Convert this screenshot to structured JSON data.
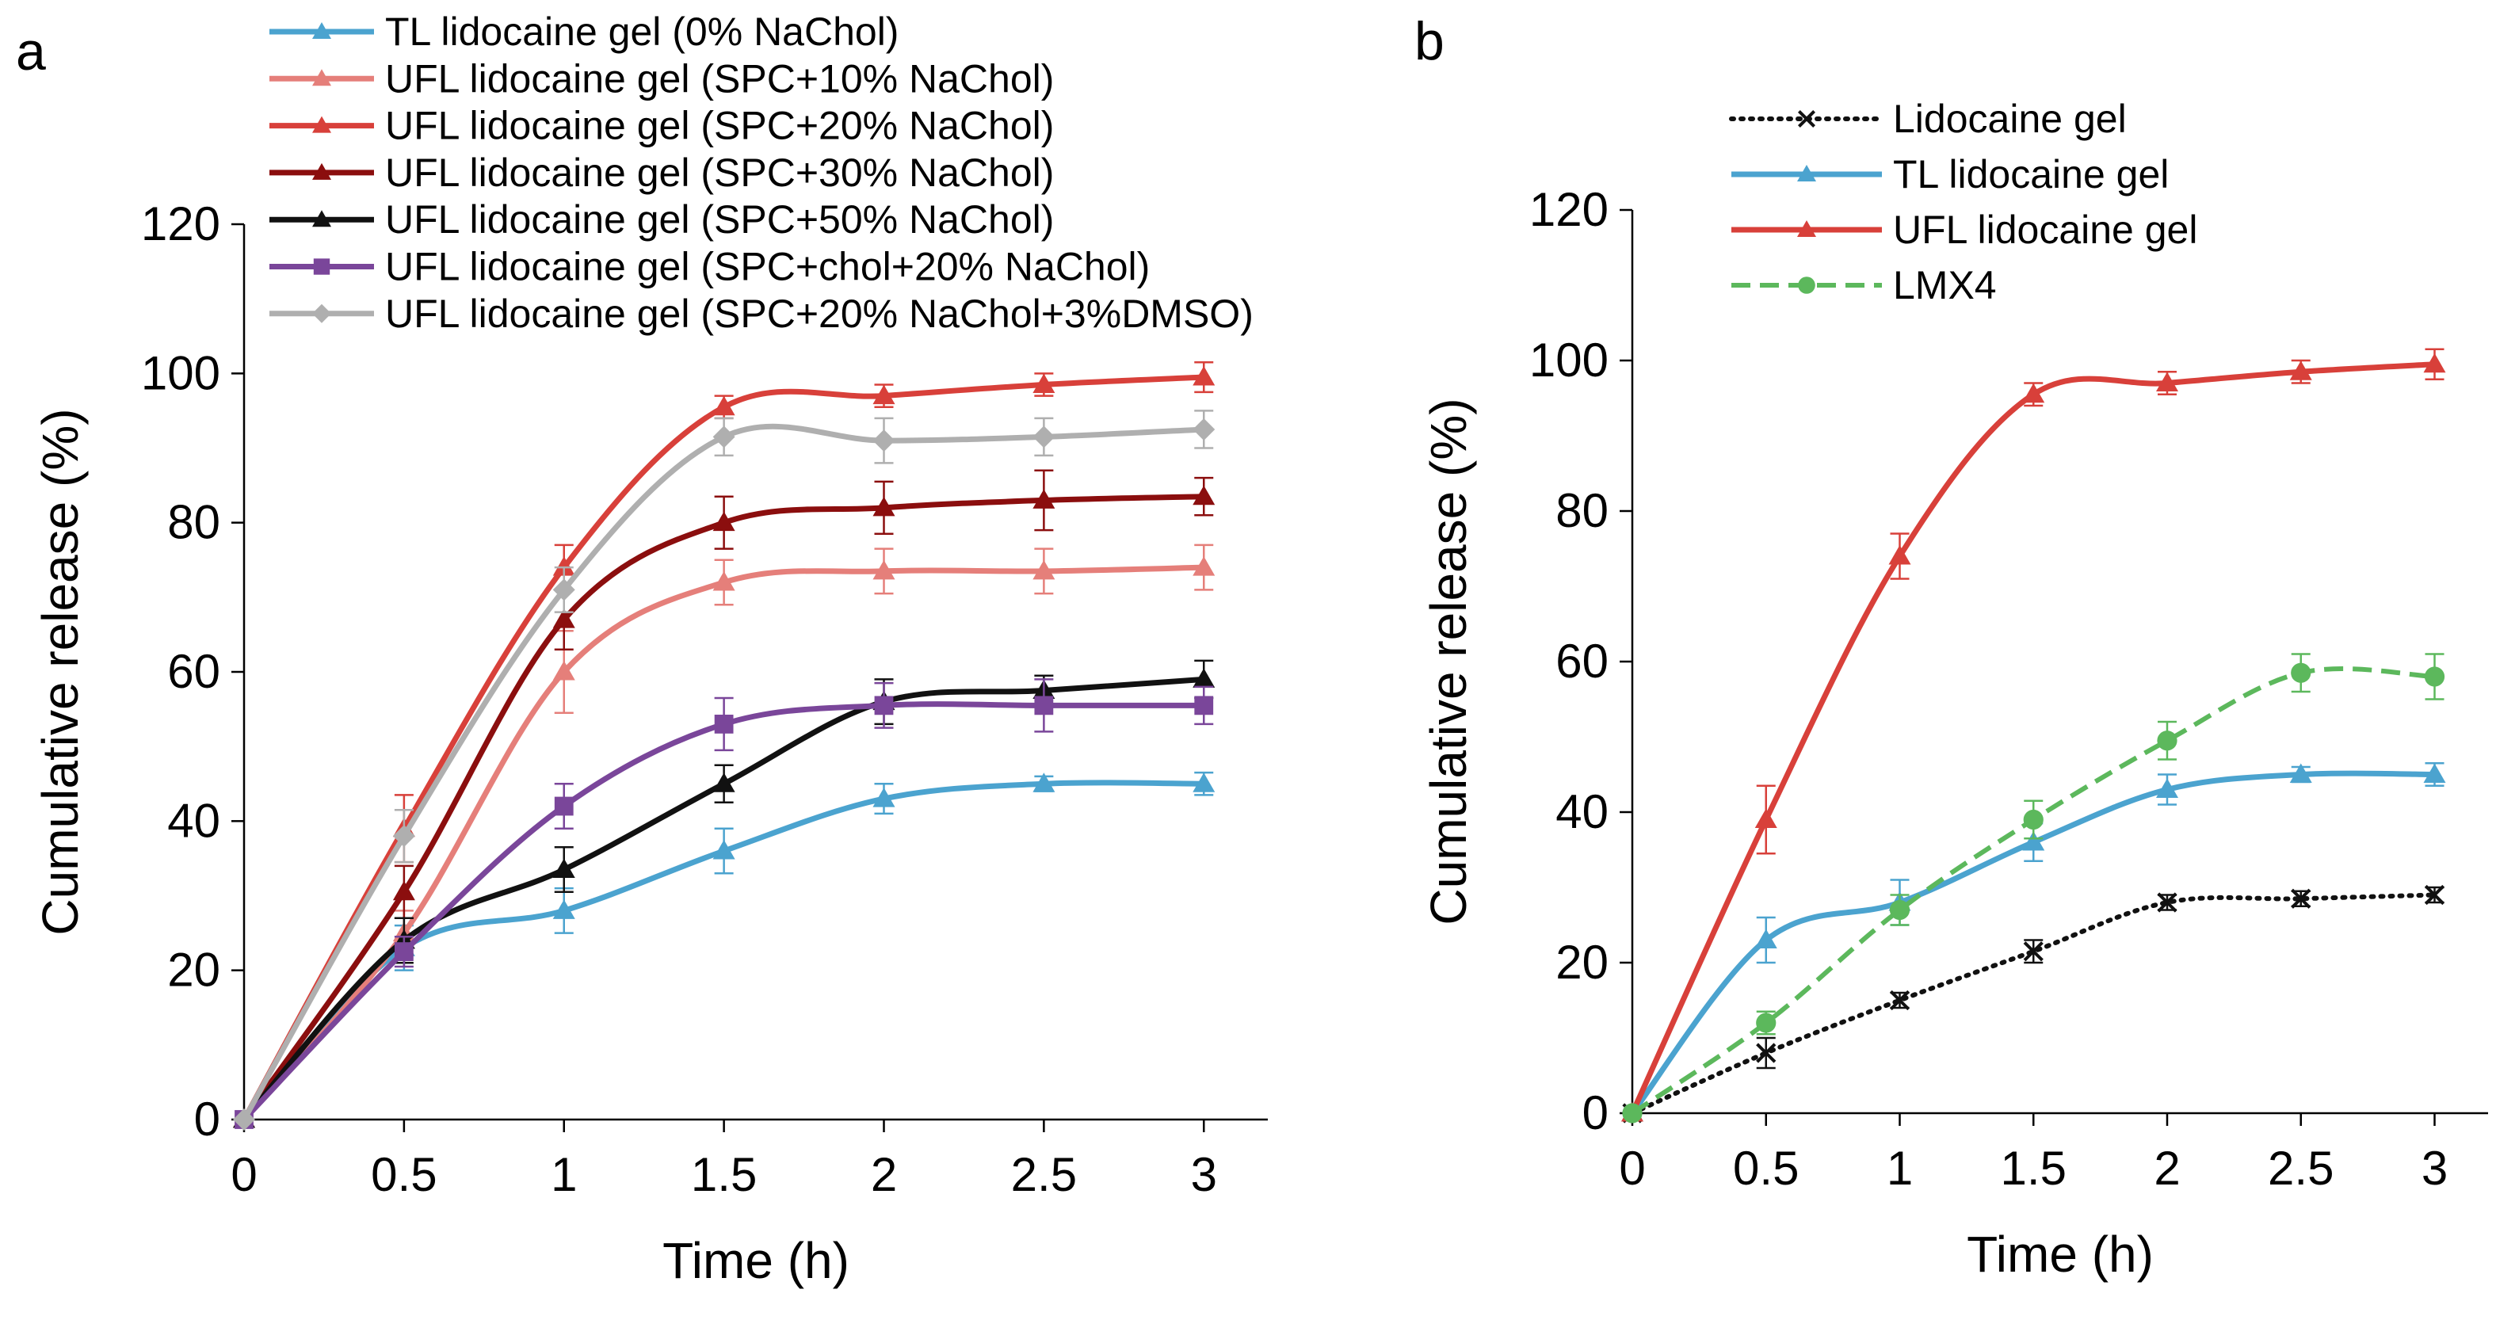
{
  "chart_data": [
    {
      "panel": "a",
      "type": "line",
      "title": "",
      "xlabel": "Time (h)",
      "ylabel": "Cumulative release (%)",
      "x": [
        0,
        0.5,
        1,
        1.5,
        2,
        2.5,
        3
      ],
      "x_ticks": [
        "0",
        "0.5",
        "1",
        "1.5",
        "2",
        "2.5",
        "3"
      ],
      "y_ticks": [
        "0",
        "20",
        "40",
        "60",
        "80",
        "100",
        "120"
      ],
      "xlim": [
        0,
        3.2
      ],
      "ylim": [
        0,
        120
      ],
      "grid": false,
      "legend_position": "top",
      "series": [
        {
          "name": "TL lidocaine gel (0% NaChol)",
          "color": "#4BA3CF",
          "marker": "triangle",
          "dash": "solid",
          "values": [
            0,
            23,
            28,
            36,
            43,
            45,
            45
          ],
          "errors": [
            0,
            3,
            3,
            3,
            2,
            1,
            1.5
          ]
        },
        {
          "name": "UFL lidocaine gel (SPC+10% NaChol)",
          "color": "#E57F7A",
          "marker": "triangle",
          "dash": "solid",
          "values": [
            0,
            25,
            60,
            72,
            73.5,
            73.5,
            74
          ],
          "errors": [
            0,
            3,
            5.5,
            3,
            3,
            3,
            3
          ]
        },
        {
          "name": "UFL lidocaine gel (SPC+20% NaChol)",
          "color": "#D8403A",
          "marker": "triangle",
          "dash": "solid",
          "values": [
            0,
            39,
            74,
            95.5,
            97,
            98.5,
            99.5
          ],
          "errors": [
            0,
            4.5,
            3,
            1.5,
            1.5,
            1.5,
            2
          ]
        },
        {
          "name": "UFL lidocaine gel (SPC+30% NaChol)",
          "color": "#8B0E0E",
          "marker": "triangle",
          "dash": "solid",
          "values": [
            0,
            30.5,
            67,
            80,
            82,
            83,
            83.5
          ],
          "errors": [
            0,
            3.5,
            4,
            3.5,
            3.5,
            4,
            2.5
          ]
        },
        {
          "name": "UFL lidocaine gel (SPC+50% NaChol)",
          "color": "#111111",
          "marker": "triangle",
          "dash": "solid",
          "values": [
            0,
            24,
            33.5,
            45,
            56,
            57.5,
            59
          ],
          "errors": [
            0,
            3,
            3,
            2.5,
            3,
            2,
            2.5
          ]
        },
        {
          "name": "UFL lidocaine gel (SPC+chol+20% NaChol)",
          "color": "#7A469A",
          "marker": "square",
          "dash": "solid",
          "values": [
            0,
            22.5,
            42,
            53,
            55.5,
            55.5,
            55.5
          ],
          "errors": [
            0,
            2,
            3,
            3.5,
            3,
            3.5,
            2.5
          ]
        },
        {
          "name": "UFL lidocaine gel (SPC+20% NaChol+3%DMSO)",
          "color": "#AFAFAF",
          "marker": "diamond",
          "dash": "solid",
          "values": [
            0,
            38,
            71,
            91.5,
            91,
            91.5,
            92.5
          ],
          "errors": [
            0,
            3.5,
            3,
            2.5,
            3,
            2.5,
            2.5
          ]
        }
      ]
    },
    {
      "panel": "b",
      "type": "line",
      "title": "",
      "xlabel": "Time (h)",
      "ylabel": "Cumulative release (%)",
      "x": [
        0,
        0.5,
        1,
        1.5,
        2,
        2.5,
        3
      ],
      "x_ticks": [
        "0",
        "0.5",
        "1",
        "1.5",
        "2",
        "2.5",
        "3"
      ],
      "y_ticks": [
        "0",
        "20",
        "40",
        "60",
        "80",
        "100",
        "120"
      ],
      "xlim": [
        0,
        3.2
      ],
      "ylim": [
        0,
        120
      ],
      "grid": false,
      "legend_position": "top-left",
      "series": [
        {
          "name": "Lidocaine gel",
          "color": "#111111",
          "marker": "x",
          "dash": "dotted",
          "values": [
            0,
            8,
            15,
            21.5,
            28,
            28.5,
            29
          ],
          "errors": [
            0,
            2,
            1,
            1.5,
            1,
            1,
            1
          ]
        },
        {
          "name": "TL lidocaine gel",
          "color": "#4BA3CF",
          "marker": "triangle",
          "dash": "solid",
          "values": [
            0,
            23,
            28,
            36,
            43,
            45,
            45
          ],
          "errors": [
            0,
            3,
            3,
            2.5,
            2,
            1,
            1.5
          ]
        },
        {
          "name": "UFL lidocaine gel",
          "color": "#D8403A",
          "marker": "triangle",
          "dash": "solid",
          "values": [
            0,
            39,
            74,
            95.5,
            97,
            98.5,
            99.5
          ],
          "errors": [
            0,
            4.5,
            3,
            1.5,
            1.5,
            1.5,
            2
          ]
        },
        {
          "name": "LMX4",
          "color": "#5CB85C",
          "marker": "circle",
          "dash": "dashed",
          "values": [
            0,
            12,
            27,
            39,
            49.5,
            58.5,
            58
          ],
          "errors": [
            0,
            1.5,
            2,
            2.5,
            2.5,
            2.5,
            3
          ]
        }
      ]
    }
  ]
}
